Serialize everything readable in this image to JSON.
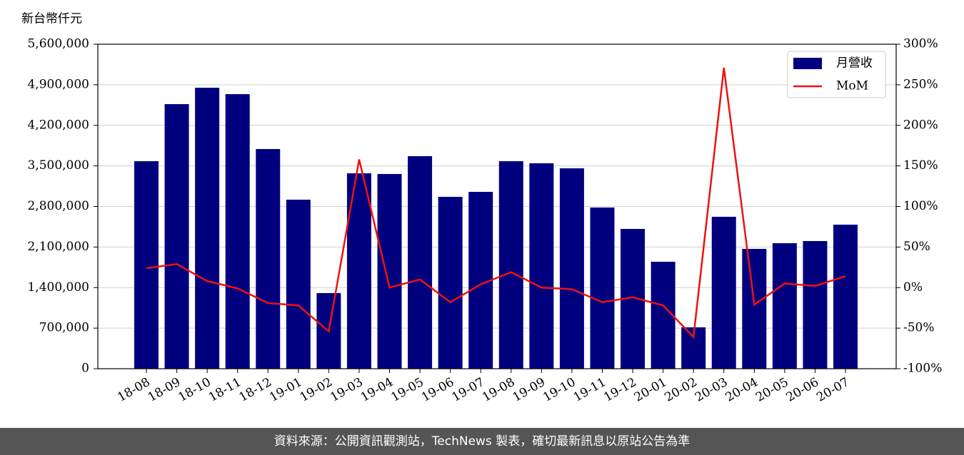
{
  "footer": "資料來源：公開資訊觀測站，TechNews 製表，確切最新訊息以原站公告為準",
  "chart_data": {
    "type": "bar",
    "y_label": "新台幣仟元",
    "categories": [
      "18-08",
      "18-09",
      "18-10",
      "18-11",
      "18-12",
      "19-01",
      "19-02",
      "19-03",
      "19-04",
      "19-05",
      "19-06",
      "19-07",
      "19-08",
      "19-09",
      "19-10",
      "19-11",
      "19-12",
      "20-01",
      "20-02",
      "20-03",
      "20-04",
      "20-05",
      "20-06",
      "20-07"
    ],
    "series": [
      {
        "name": "月營收",
        "type": "bar",
        "color": "#00007f",
        "values": [
          3581000,
          4566000,
          4849000,
          4738000,
          3791000,
          2917000,
          1305000,
          3372000,
          3360000,
          3668000,
          2966000,
          3052000,
          3581000,
          3545000,
          3458000,
          2782000,
          2412000,
          1846000,
          714000,
          2622000,
          2068000,
          2166000,
          2203000,
          2486000
        ]
      },
      {
        "name": "MoM",
        "type": "line",
        "axis": "y2",
        "color": "#ee1111",
        "values": [
          24,
          29,
          8,
          -1,
          -19,
          -22,
          -54,
          158,
          0,
          10,
          -18,
          4,
          19,
          0,
          -2,
          -18,
          -12,
          -22,
          -61,
          271,
          -21,
          5,
          2,
          14
        ]
      }
    ],
    "ylim": [
      0,
      5600000
    ],
    "yticks": [
      {
        "value": 0,
        "label": "0"
      },
      {
        "value": 700000,
        "label": "700,000"
      },
      {
        "value": 1400000,
        "label": "1,400,000"
      },
      {
        "value": 2100000,
        "label": "2,100,000"
      },
      {
        "value": 2800000,
        "label": "2,800,000"
      },
      {
        "value": 3500000,
        "label": "3,500,000"
      },
      {
        "value": 4200000,
        "label": "4,200,000"
      },
      {
        "value": 4900000,
        "label": "4,900,000"
      },
      {
        "value": 5600000,
        "label": "5,600,000"
      }
    ],
    "y2lim": [
      -100,
      300
    ],
    "y2ticks": [
      {
        "value": -100,
        "label": "-100%"
      },
      {
        "value": -50,
        "label": "-50%"
      },
      {
        "value": 0,
        "label": "0%"
      },
      {
        "value": 50,
        "label": "50%"
      },
      {
        "value": 100,
        "label": "100%"
      },
      {
        "value": 150,
        "label": "150%"
      },
      {
        "value": 200,
        "label": "200%"
      },
      {
        "value": 250,
        "label": "250%"
      },
      {
        "value": 300,
        "label": "300%"
      }
    ],
    "grid": true,
    "legend": "upper right"
  }
}
